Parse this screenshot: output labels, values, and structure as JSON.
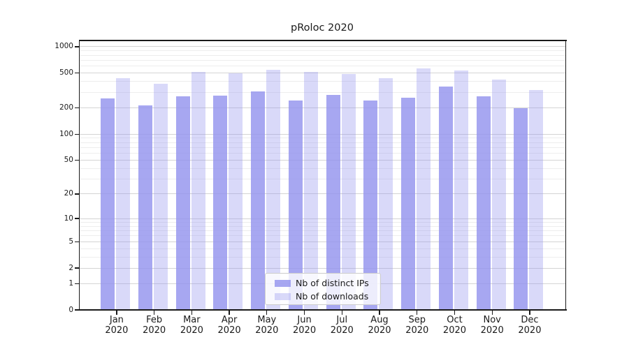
{
  "chart_data": {
    "type": "bar",
    "title": "pRoloc 2020",
    "categories": [
      "Jan",
      "Feb",
      "Mar",
      "Apr",
      "May",
      "Jun",
      "Jul",
      "Aug",
      "Sep",
      "Oct",
      "Nov",
      "Dec"
    ],
    "x_tick_second_line": "2020",
    "series": [
      {
        "name": "Nb of distinct IPs",
        "color": "rgba(145,145,238,0.8)",
        "approx_hex": "#a6a6ef",
        "values": [
          257,
          213,
          272,
          277,
          310,
          243,
          282,
          243,
          264,
          349,
          270,
          197
        ]
      },
      {
        "name": "Nb of downloads",
        "color": "rgba(145,145,238,0.35)",
        "approx_hex": "#dcdcf9",
        "values": [
          438,
          377,
          520,
          500,
          550,
          520,
          490,
          435,
          571,
          540,
          422,
          323
        ]
      }
    ],
    "yscale": "log10(value+1)",
    "yticks": [
      0,
      1,
      2,
      5,
      10,
      20,
      50,
      100,
      200,
      500,
      1000
    ],
    "yminor_gridlines": [
      3,
      4,
      6,
      7,
      8,
      9,
      30,
      40,
      60,
      70,
      80,
      90,
      300,
      400,
      600,
      700,
      800,
      900
    ],
    "ylim": [
      0,
      1190
    ],
    "xlabel": "",
    "ylabel": "",
    "grid": {
      "on": true,
      "major_color": "#d4d4d4",
      "minor_color": "#ededed"
    },
    "legend": {
      "position": "lower center"
    },
    "colors": {
      "spine": "#1a1a1a",
      "background": "#ffffff",
      "text": "#1a1a1a"
    }
  }
}
